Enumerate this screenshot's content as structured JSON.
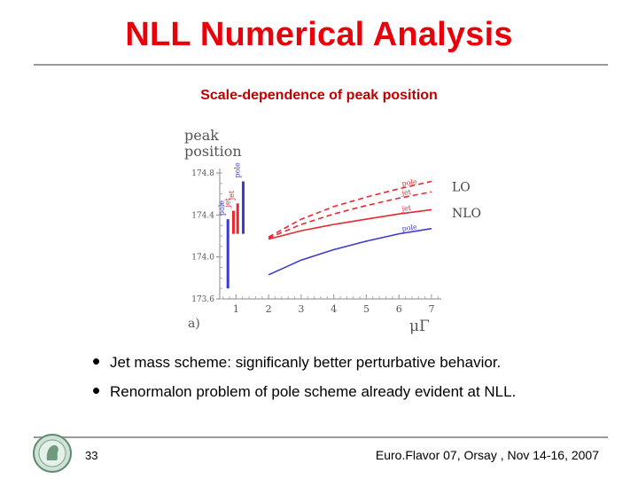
{
  "slide": {
    "title": "NLL Numerical Analysis",
    "subtitle": "Scale-dependence of peak position",
    "bullets": [
      "Jet mass scheme: significanly better perturbative behavior.",
      "Renormalon problem of pole scheme already evident at NLL."
    ],
    "slide_number": "33",
    "footer": "Euro.Flavor 07, Orsay , Nov 14-16, 2007"
  },
  "colors": {
    "title": "#e8000b",
    "red_series": "#e8272e",
    "blue_series": "#3a3ad0",
    "rule": "#9a9a9a"
  },
  "chart_data": {
    "type": "line",
    "ylabel_line1": "peak",
    "ylabel_line2": "position",
    "xlabel": "μΓ",
    "panel_label": "a)",
    "ylim": [
      173.6,
      174.8
    ],
    "xlim": [
      0.5,
      7.3
    ],
    "y_ticks": [
      "173.6",
      "174.0",
      "174.4",
      "174.8"
    ],
    "x_ticks": [
      "1",
      "2",
      "3",
      "4",
      "5",
      "6",
      "7"
    ],
    "order_labels": {
      "lo": "LO",
      "nlo": "NLO"
    },
    "series": [
      {
        "name": "pole",
        "order": "LO",
        "color": "red",
        "dashed": true,
        "x": [
          2.0,
          3.0,
          4.0,
          5.0,
          6.0,
          7.0
        ],
        "y": [
          174.19,
          174.36,
          174.48,
          174.57,
          174.65,
          174.72
        ]
      },
      {
        "name": "jet",
        "order": "LO",
        "color": "red",
        "dashed": true,
        "x": [
          2.0,
          3.0,
          4.0,
          5.0,
          6.0,
          7.0
        ],
        "y": [
          174.18,
          174.31,
          174.41,
          174.49,
          174.56,
          174.62
        ]
      },
      {
        "name": "jet",
        "order": "NLO",
        "color": "red",
        "dashed": false,
        "x": [
          2.0,
          3.0,
          4.0,
          5.0,
          6.0,
          7.0
        ],
        "y": [
          174.17,
          174.25,
          174.31,
          174.36,
          174.41,
          174.45
        ]
      },
      {
        "name": "pole",
        "order": "NLO",
        "color": "blue",
        "dashed": false,
        "x": [
          2.0,
          3.0,
          4.0,
          5.0,
          6.0,
          7.0
        ],
        "y": [
          173.83,
          173.97,
          174.07,
          174.15,
          174.22,
          174.27
        ]
      }
    ],
    "error_bars": [
      {
        "name": "pole",
        "color": "blue",
        "x": 0.75,
        "low": 173.7,
        "high": 174.36
      },
      {
        "name": "jet",
        "color": "red",
        "x": 0.92,
        "low": 174.22,
        "high": 174.44
      },
      {
        "name": "jet",
        "color": "red",
        "x": 1.05,
        "low": 174.22,
        "high": 174.51
      },
      {
        "name": "pole",
        "color": "blue",
        "x": 1.22,
        "low": 174.22,
        "high": 174.72
      }
    ]
  }
}
